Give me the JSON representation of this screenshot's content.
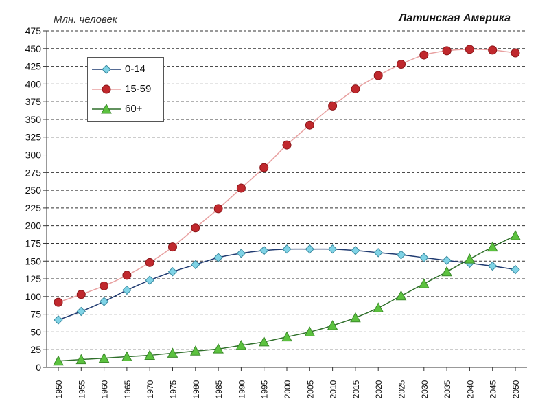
{
  "chart_data": {
    "type": "line",
    "ylabel": "Млн. человек",
    "title": "Латинская Америка",
    "xlabel": "",
    "ylim": [
      0,
      475
    ],
    "yticks": [
      0,
      25,
      50,
      75,
      100,
      125,
      150,
      175,
      200,
      225,
      250,
      275,
      300,
      325,
      350,
      375,
      400,
      425,
      450,
      475
    ],
    "grid": true,
    "legend_position": "top-left",
    "x": [
      1950,
      1955,
      1960,
      1965,
      1970,
      1975,
      1980,
      1985,
      1990,
      1995,
      2000,
      2005,
      2010,
      2015,
      2020,
      2025,
      2030,
      2035,
      2040,
      2045,
      2050
    ],
    "series": [
      {
        "name": "0-14",
        "marker": "diamond",
        "color": "#7fd3e6",
        "line_color": "#1f3a70",
        "values": [
          67,
          79,
          93,
          109,
          123,
          135,
          145,
          155,
          161,
          165,
          167,
          167,
          167,
          165,
          162,
          159,
          155,
          151,
          147,
          143,
          138
        ]
      },
      {
        "name": "15-59",
        "marker": "circle",
        "color": "#c0282d",
        "line_color": "#e8a0a0",
        "values": [
          92,
          103,
          115,
          130,
          148,
          170,
          197,
          224,
          253,
          282,
          314,
          342,
          369,
          393,
          412,
          428,
          441,
          447,
          449,
          448,
          444
        ]
      },
      {
        "name": "60+",
        "marker": "triangle",
        "color": "#5cc23f",
        "line_color": "#2f6f2a",
        "values": [
          9,
          11,
          13,
          15,
          17,
          20,
          23,
          26,
          31,
          36,
          43,
          50,
          59,
          70,
          84,
          101,
          118,
          135,
          153,
          170,
          186
        ]
      }
    ]
  }
}
